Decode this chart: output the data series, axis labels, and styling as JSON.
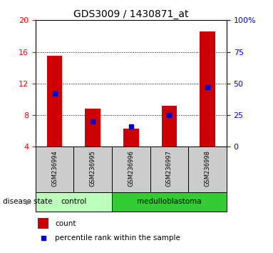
{
  "title": "GDS3009 / 1430871_at",
  "samples": [
    "GSM236994",
    "GSM236995",
    "GSM236996",
    "GSM236997",
    "GSM236998"
  ],
  "count_values": [
    15.5,
    8.8,
    6.3,
    9.2,
    18.6
  ],
  "percentile_values": [
    42,
    20,
    16,
    25,
    47
  ],
  "ylim_left": [
    4,
    20
  ],
  "ylim_right": [
    0,
    100
  ],
  "yticks_left": [
    4,
    8,
    12,
    16,
    20
  ],
  "yticks_right": [
    0,
    25,
    50,
    75,
    100
  ],
  "bar_color": "#cc0000",
  "dot_color": "#0000cc",
  "groups": [
    {
      "label": "control",
      "indices": [
        0,
        1
      ],
      "color": "#bbffbb"
    },
    {
      "label": "medulloblastoma",
      "indices": [
        2,
        3,
        4
      ],
      "color": "#33cc33"
    }
  ],
  "group_label": "disease state",
  "legend_count_label": "count",
  "legend_percentile_label": "percentile rank within the sample",
  "grid_color": "#000000",
  "background_color": "#ffffff",
  "label_area_color": "#cccccc",
  "title_fontsize": 10,
  "tick_fontsize": 8,
  "bar_width": 0.4
}
